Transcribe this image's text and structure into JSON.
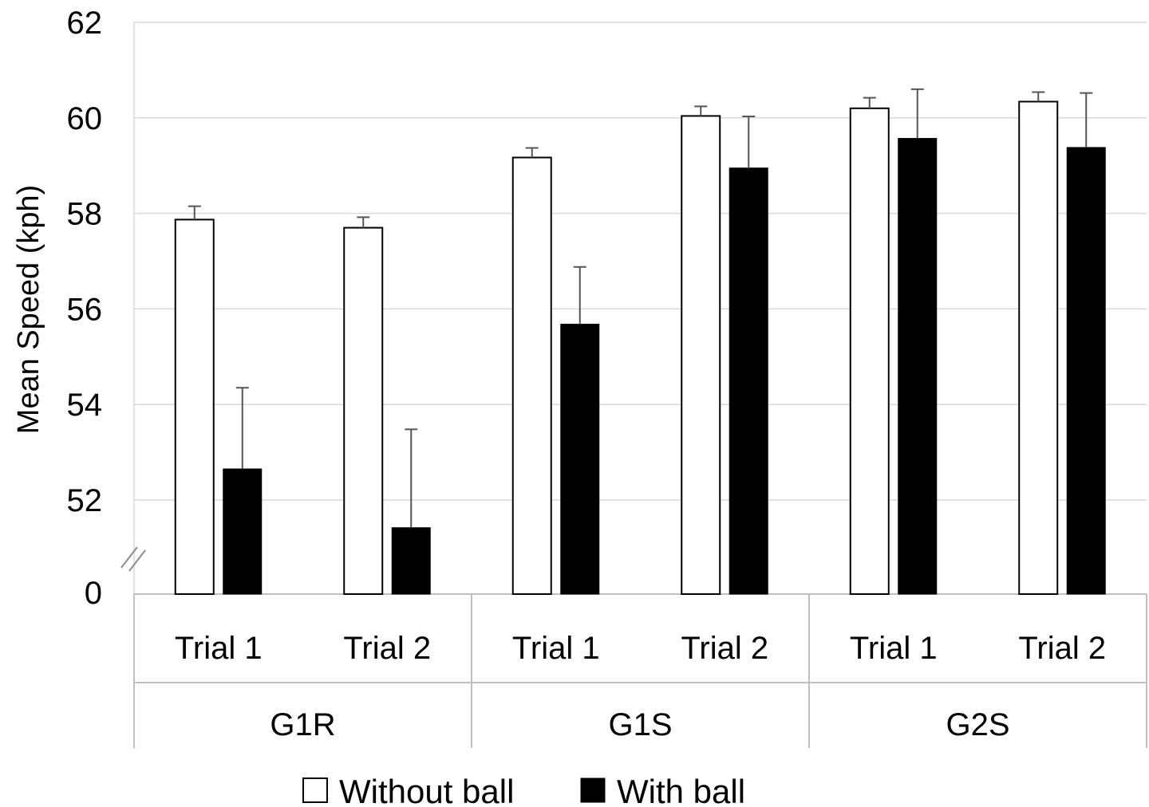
{
  "chart_data": {
    "type": "bar",
    "ylabel": "Mean Speed (kph)",
    "xlabel": "",
    "title": "",
    "ylim": [
      50,
      62
    ],
    "axis_break": true,
    "break_label": "0",
    "yticks": [
      52,
      54,
      56,
      58,
      60,
      62
    ],
    "grid": true,
    "legend_position": "bottom",
    "groups": [
      {
        "label": "G1R",
        "categories": [
          "Trial 1",
          "Trial 2"
        ]
      },
      {
        "label": "G1S",
        "categories": [
          "Trial 1",
          "Trial 2"
        ]
      },
      {
        "label": "G2S",
        "categories": [
          "Trial 1",
          "Trial 2"
        ]
      }
    ],
    "categories": [
      "Trial 1",
      "Trial 2",
      "Trial 1",
      "Trial 2",
      "Trial 1",
      "Trial 2"
    ],
    "series": [
      {
        "name": "Without ball",
        "color": "#ffffff",
        "values": [
          57.87,
          57.7,
          59.17,
          60.04,
          60.2,
          60.34
        ],
        "errors": [
          0.28,
          0.22,
          0.2,
          0.2,
          0.22,
          0.2
        ]
      },
      {
        "name": "With ball",
        "color": "#000000",
        "values": [
          52.65,
          51.42,
          55.68,
          58.95,
          59.57,
          59.38
        ],
        "errors": [
          1.7,
          2.06,
          1.2,
          1.08,
          1.03,
          1.14
        ]
      }
    ]
  }
}
